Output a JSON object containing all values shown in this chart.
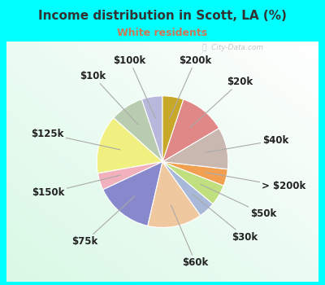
{
  "title": "Income distribution in Scott, LA (%)",
  "subtitle": "White residents",
  "title_color": "#333333",
  "subtitle_color": "#cc7755",
  "bg_cyan": "#00ffff",
  "labels": [
    "$100k",
    "$10k",
    "$125k",
    "$150k",
    "$75k",
    "$60k",
    "$30k",
    "$50k",
    "> $200k",
    "$40k",
    "$20k",
    "$200k"
  ],
  "values": [
    5,
    8,
    14,
    4,
    14,
    13,
    4,
    5,
    4,
    10,
    11,
    5
  ],
  "colors": [
    "#b8b8dc",
    "#b8ccb0",
    "#f0f080",
    "#f0b0bc",
    "#8888cc",
    "#f0c8a0",
    "#a8b8d8",
    "#c0e080",
    "#f0a050",
    "#c8b8b0",
    "#e08888",
    "#c8a828"
  ],
  "start_angle": 90,
  "label_fontsize": 8.5,
  "watermark": "City-Data.com"
}
